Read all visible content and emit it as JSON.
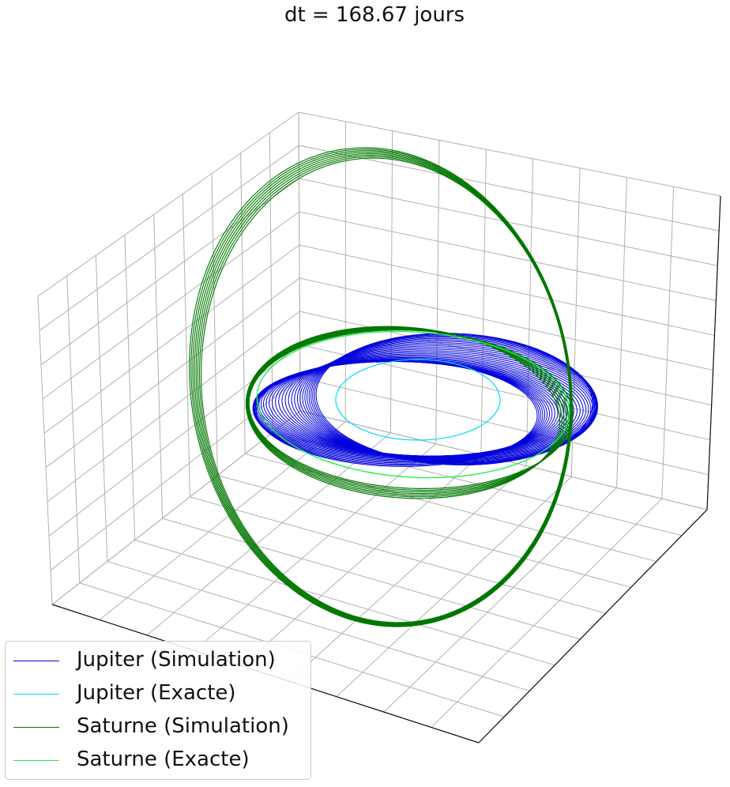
{
  "chart_data": {
    "type": "line",
    "projection": "3d",
    "title": "dt = 168.67 jours",
    "grid": true,
    "axis_tick_labels_visible": false,
    "legend_position": "lower-left",
    "series": [
      {
        "name": "Jupiter (Simulation)",
        "color": "#0000dd",
        "linewidth": "thin",
        "behavior": "precessing-drifting-orbits"
      },
      {
        "name": "Jupiter (Exacte)",
        "color": "#00d8ff",
        "linewidth": "thin",
        "behavior": "closed-ellipse"
      },
      {
        "name": "Saturne (Simulation)",
        "color": "#007700",
        "linewidth": "thin",
        "behavior": "precessing-tilted-orbits"
      },
      {
        "name": "Saturne (Exacte)",
        "color": "#22ee55",
        "linewidth": "thin",
        "behavior": "closed-ellipse"
      }
    ]
  }
}
